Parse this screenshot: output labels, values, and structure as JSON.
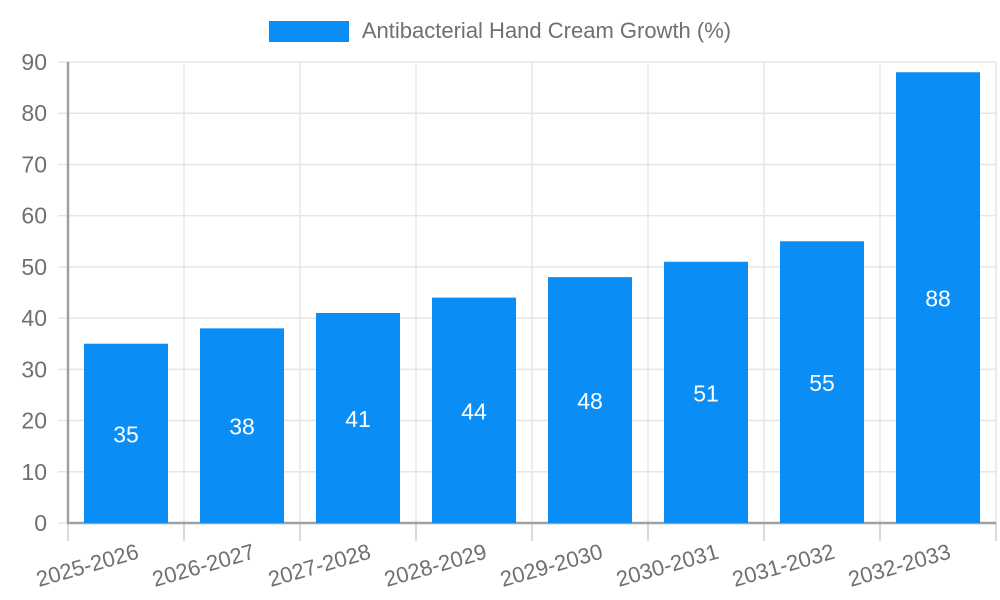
{
  "legend": {
    "label": "Antibacterial Hand Cream Growth (%)"
  },
  "colors": {
    "bar": "#0a8ef6",
    "grid": "#e6e6e6",
    "axis_line": "#a0a0a0",
    "x_tick": "#cfcfcf",
    "tick_text": "#707070",
    "value_label": "#ffffff",
    "background": "#ffffff"
  },
  "chart_data": {
    "type": "bar",
    "title": "Antibacterial Hand Cream Growth (%)",
    "categories": [
      "2025-2026",
      "2026-2027",
      "2027-2028",
      "2028-2029",
      "2029-2030",
      "2030-2031",
      "2031-2032",
      "2032-2033"
    ],
    "values": [
      35,
      38,
      41,
      44,
      48,
      51,
      55,
      88
    ],
    "xlabel": "",
    "ylabel": "",
    "ylim": [
      0,
      90
    ],
    "ytick_step": 10,
    "yticks": [
      0,
      10,
      20,
      30,
      40,
      50,
      60,
      70,
      80,
      90
    ],
    "grid": true,
    "legend_position": "top-center",
    "value_labels": "inside-center",
    "x_label_rotation_deg": -16
  }
}
